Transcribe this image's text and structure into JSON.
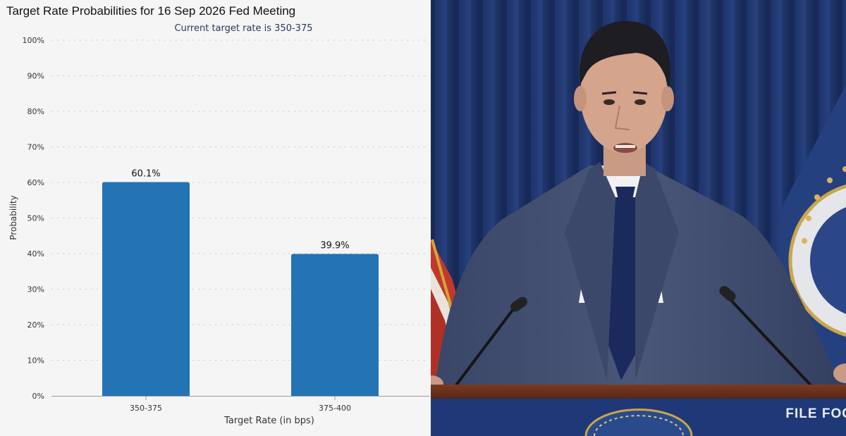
{
  "chart_data": {
    "type": "bar",
    "title": "Target Rate Probabilities for 16 Sep 2026 Fed Meeting",
    "subtitle": "Current target rate is 350-375",
    "xlabel": "Target Rate (in bps)",
    "ylabel": "Probability",
    "categories": [
      "350-375",
      "375-400"
    ],
    "values": [
      60.1,
      39.9
    ],
    "data_labels": [
      "60.1%",
      "39.9%"
    ],
    "ylim": [
      0,
      100
    ],
    "yticks": [
      0,
      10,
      20,
      30,
      40,
      50,
      60,
      70,
      80,
      90,
      100
    ],
    "ytick_labels": [
      "0%",
      "10%",
      "20%",
      "30%",
      "40%",
      "50%",
      "60%",
      "70%",
      "80%",
      "90%",
      "100%"
    ],
    "grid": true,
    "bar_color": "#2473b5"
  },
  "photo": {
    "caption": "FILE FOO"
  }
}
